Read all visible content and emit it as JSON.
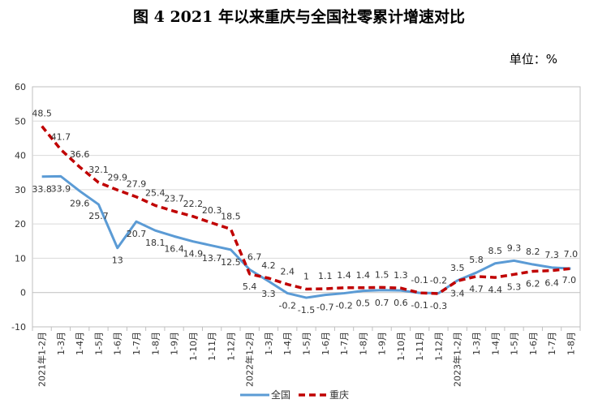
{
  "title": "图 4    2021 年以来重庆与全国社零累计增速对比",
  "unit_label": "单位：%",
  "chart_data": {
    "type": "line",
    "x": [
      "2021年1-2月",
      "1-3月",
      "1-4月",
      "1-5月",
      "1-6月",
      "1-7月",
      "1-8月",
      "1-9月",
      "1-10月",
      "1-11月",
      "1-12月",
      "2022年1-2月",
      "1-3月",
      "1-4月",
      "1-5月",
      "1-6月",
      "1-7月",
      "1-8月",
      "1-9月",
      "1-10月",
      "1-11月",
      "1-12月",
      "2023年1-2月",
      "1-3月",
      "1-4月",
      "1-5月",
      "1-6月",
      "1-7月",
      "1-8月"
    ],
    "ylim": [
      -10,
      60
    ],
    "yticks": [
      -10,
      0,
      10,
      20,
      30,
      40,
      50,
      60
    ],
    "grid": true,
    "legend_position": "bottom",
    "series": [
      {
        "name": "全国",
        "color": "#5B9BD5",
        "style": "solid",
        "values": [
          33.8,
          33.9,
          29.6,
          25.7,
          13,
          20.7,
          18.1,
          16.4,
          14.9,
          13.7,
          12.5,
          6.7,
          3.3,
          -0.2,
          -1.5,
          -0.7,
          -0.2,
          0.5,
          0.7,
          0.6,
          -0.1,
          -0.2,
          3.5,
          5.8,
          8.5,
          9.3,
          8.2,
          7.3,
          7.0
        ],
        "labels": [
          "33.8",
          "33.9",
          "29.6",
          "25.7",
          "13",
          "20.7",
          "18.1",
          "16.4",
          "14.9",
          "13.7",
          "12.5",
          "6.7",
          "3.3",
          "-0.2",
          "-1.5",
          "-0.7",
          "-0.2",
          "0.5",
          "0.7",
          "0.6",
          "-0.1",
          "-0.2",
          "3.5",
          "5.8",
          "8.5",
          "9.3",
          "8.2",
          "7.3",
          "7.0"
        ]
      },
      {
        "name": "重庆",
        "color": "#C00000",
        "style": "dashed",
        "values": [
          48.5,
          41.7,
          36.6,
          32.1,
          29.9,
          27.9,
          25.4,
          23.7,
          22.2,
          20.3,
          18.5,
          5.4,
          4.2,
          2.4,
          1,
          1.1,
          1.4,
          1.4,
          1.5,
          1.3,
          -0.1,
          -0.3,
          3.4,
          4.7,
          4.4,
          5.3,
          6.2,
          6.4,
          7.0
        ],
        "labels": [
          "48.5",
          "41.7",
          "36.6",
          "32.1",
          "29.9",
          "27.9",
          "25.4",
          "23.7",
          "22.2",
          "20.3",
          "18.5",
          "5.4",
          "4.2",
          "2.4",
          "1",
          "1.1",
          "1.4",
          "1.4",
          "1.5",
          "1.3",
          "-0.1",
          "-0.3",
          "3.4",
          "4.7",
          "4.4",
          "5.3",
          "6.2",
          "6.4",
          "7.0"
        ]
      }
    ]
  }
}
